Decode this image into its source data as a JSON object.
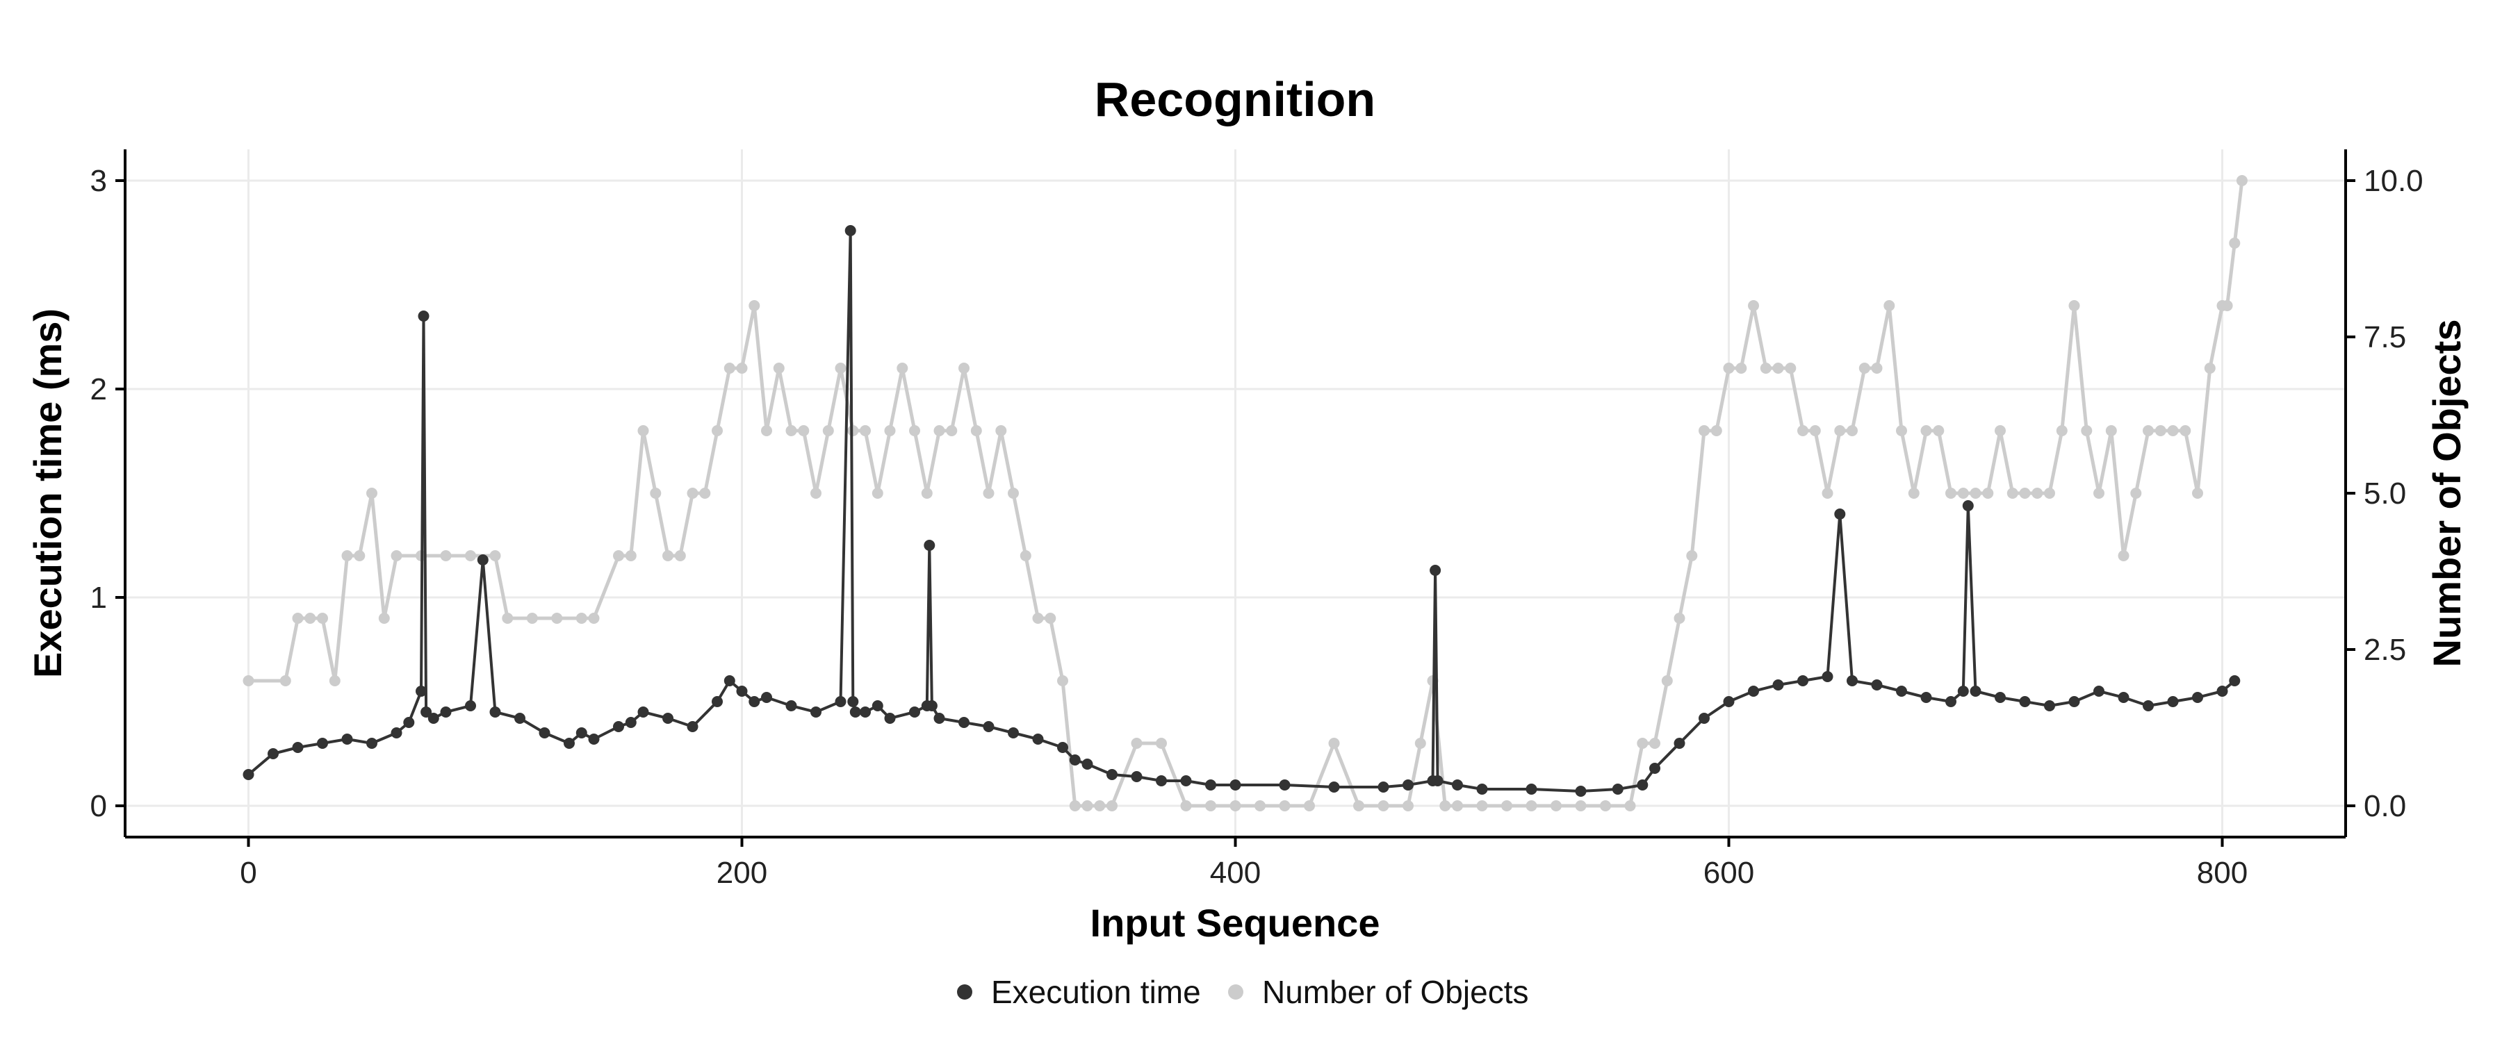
{
  "chart_data": {
    "type": "line",
    "title": "Recognition",
    "xlabel": "Input Sequence",
    "ylabel": "Execution time (ms)",
    "y2label": "Number of Objects",
    "xlim": [
      -50,
      850
    ],
    "ylim": [
      -0.15,
      3.15
    ],
    "y2lim": [
      -0.5,
      10.5
    ],
    "x_ticks": [
      0,
      200,
      400,
      600,
      800
    ],
    "x_tick_labels": [
      "0",
      "200",
      "400",
      "600",
      "800"
    ],
    "y_ticks": [
      0,
      1,
      2,
      3
    ],
    "y_tick_labels": [
      "0",
      "1",
      "2",
      "3"
    ],
    "y2_ticks": [
      0,
      2.5,
      5,
      7.5,
      10
    ],
    "y2_tick_labels": [
      "0.0",
      "2.5",
      "5.0",
      "7.5",
      "10.0"
    ],
    "grid": true,
    "legend_position": "bottom",
    "colors": {
      "execution": "#333333",
      "objects": "#cccccc"
    },
    "series": [
      {
        "name": "Number of Objects",
        "axis": "right",
        "x": [
          0,
          15,
          20,
          25,
          30,
          35,
          40,
          45,
          50,
          55,
          60,
          70,
          80,
          90,
          100,
          105,
          115,
          125,
          135,
          140,
          150,
          155,
          160,
          165,
          170,
          175,
          180,
          185,
          190,
          195,
          200,
          205,
          210,
          215,
          220,
          225,
          230,
          235,
          240,
          245,
          250,
          255,
          260,
          265,
          270,
          275,
          280,
          285,
          290,
          295,
          300,
          305,
          310,
          315,
          320,
          325,
          330,
          335,
          340,
          345,
          350,
          360,
          370,
          380,
          390,
          400,
          410,
          420,
          430,
          440,
          450,
          460,
          470,
          475,
          480,
          485,
          490,
          500,
          510,
          520,
          530,
          540,
          550,
          560,
          565,
          570,
          575,
          580,
          585,
          590,
          595,
          600,
          605,
          610,
          615,
          620,
          625,
          630,
          635,
          640,
          645,
          650,
          655,
          660,
          665,
          670,
          675,
          680,
          685,
          690,
          695,
          700,
          705,
          710,
          715,
          720,
          725,
          730,
          735,
          740,
          745,
          750,
          755,
          760,
          765,
          770,
          775,
          780,
          785,
          790,
          795,
          800,
          802,
          805,
          808
        ],
        "values": [
          2,
          2,
          3,
          3,
          3,
          2,
          4,
          4,
          5,
          3,
          4,
          4,
          4,
          4,
          4,
          3,
          3,
          3,
          3,
          3,
          4,
          4,
          6,
          5,
          4,
          4,
          5,
          5,
          6,
          7,
          7,
          8,
          6,
          7,
          6,
          6,
          5,
          6,
          7,
          6,
          6,
          5,
          6,
          7,
          6,
          5,
          6,
          6,
          7,
          6,
          5,
          6,
          5,
          4,
          3,
          3,
          2,
          0,
          0,
          0,
          0,
          1,
          1,
          0,
          0,
          0,
          0,
          0,
          0,
          1,
          0,
          0,
          0,
          1,
          2,
          0,
          0,
          0,
          0,
          0,
          0,
          0,
          0,
          0,
          1,
          1,
          2,
          3,
          4,
          6,
          6,
          7,
          7,
          8,
          7,
          7,
          7,
          6,
          6,
          5,
          6,
          6,
          7,
          7,
          8,
          6,
          5,
          6,
          6,
          5,
          5,
          5,
          5,
          6,
          5,
          5,
          5,
          5,
          6,
          8,
          6,
          5,
          6,
          4,
          5,
          6,
          6,
          6,
          6,
          5,
          7,
          8,
          8,
          9,
          10
        ]
      },
      {
        "name": "Execution time",
        "axis": "left",
        "x": [
          0,
          10,
          20,
          30,
          40,
          50,
          60,
          65,
          70,
          71,
          72,
          75,
          80,
          90,
          95,
          100,
          110,
          120,
          130,
          135,
          140,
          150,
          155,
          160,
          170,
          180,
          190,
          195,
          200,
          205,
          210,
          220,
          230,
          240,
          244,
          245,
          246,
          250,
          255,
          260,
          270,
          275,
          276,
          277,
          280,
          290,
          300,
          310,
          320,
          330,
          335,
          340,
          350,
          360,
          370,
          380,
          390,
          400,
          420,
          440,
          460,
          470,
          480,
          481,
          482,
          490,
          500,
          520,
          540,
          555,
          565,
          570,
          580,
          590,
          600,
          610,
          620,
          630,
          640,
          645,
          650,
          660,
          670,
          680,
          690,
          695,
          697,
          700,
          710,
          720,
          730,
          740,
          750,
          760,
          770,
          780,
          790,
          800,
          805
        ],
        "values": [
          0.15,
          0.25,
          0.28,
          0.3,
          0.32,
          0.3,
          0.35,
          0.4,
          0.55,
          2.35,
          0.45,
          0.42,
          0.45,
          0.48,
          1.18,
          0.45,
          0.42,
          0.35,
          0.3,
          0.35,
          0.32,
          0.38,
          0.4,
          0.45,
          0.42,
          0.38,
          0.5,
          0.6,
          0.55,
          0.5,
          0.52,
          0.48,
          0.45,
          0.5,
          2.76,
          0.5,
          0.45,
          0.45,
          0.48,
          0.42,
          0.45,
          0.48,
          1.25,
          0.48,
          0.42,
          0.4,
          0.38,
          0.35,
          0.32,
          0.28,
          0.22,
          0.2,
          0.15,
          0.14,
          0.12,
          0.12,
          0.1,
          0.1,
          0.1,
          0.09,
          0.09,
          0.1,
          0.12,
          1.13,
          0.12,
          0.1,
          0.08,
          0.08,
          0.07,
          0.08,
          0.1,
          0.18,
          0.3,
          0.42,
          0.5,
          0.55,
          0.58,
          0.6,
          0.62,
          1.4,
          0.6,
          0.58,
          0.55,
          0.52,
          0.5,
          0.55,
          1.44,
          0.55,
          0.52,
          0.5,
          0.48,
          0.5,
          0.55,
          0.52,
          0.48,
          0.5,
          0.52,
          0.55,
          0.6
        ]
      }
    ]
  }
}
